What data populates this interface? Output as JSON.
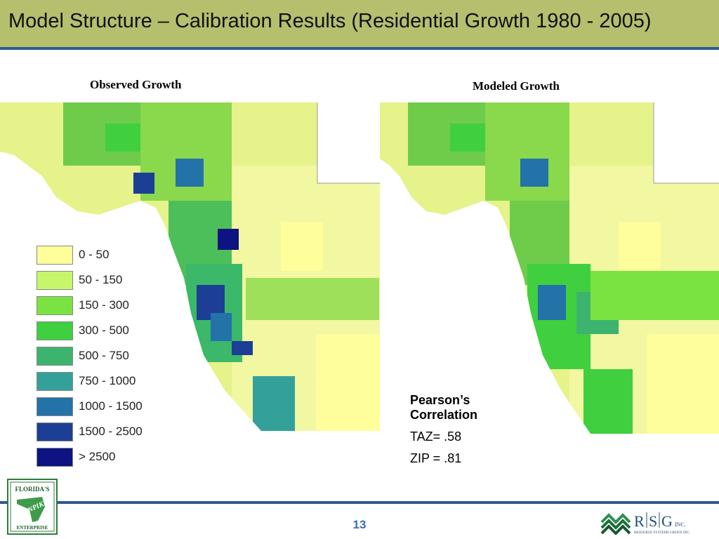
{
  "slide": {
    "title": "Model Structure –  Calibration Results (Residential Growth 1980 - 2005)",
    "page_number": "13"
  },
  "maps": {
    "observed_label": "Observed Growth",
    "modeled_label": "Modeled Growth"
  },
  "legend": {
    "items": [
      {
        "label": "0 - 50",
        "color": "#fefe9a"
      },
      {
        "label": "50 - 150",
        "color": "#c6f76b"
      },
      {
        "label": "150 - 300",
        "color": "#7ae342"
      },
      {
        "label": "300 - 500",
        "color": "#3fcf3f"
      },
      {
        "label": "500 - 750",
        "color": "#3cb46e"
      },
      {
        "label": "750 - 1000",
        "color": "#33a19a"
      },
      {
        "label": "1000 - 1500",
        "color": "#2372a8"
      },
      {
        "label": "1500 - 2500",
        "color": "#1c3f95"
      },
      {
        "label": "> 2500",
        "color": "#0d1380"
      }
    ]
  },
  "stats": {
    "heading": "Pearson’s Correlation",
    "taz": "TAZ= .58",
    "zip": "ZIP = .81"
  },
  "logos": {
    "left_text_1": "FLORIDA'S",
    "left_text_2": "TURNPIKE",
    "left_text_3": "ENTERPRISE",
    "right_r": "R",
    "right_s": "S",
    "right_g": "G",
    "right_inc": "INC.",
    "right_sub": "RESOURCE SYSTEMS GROUP, INC."
  }
}
